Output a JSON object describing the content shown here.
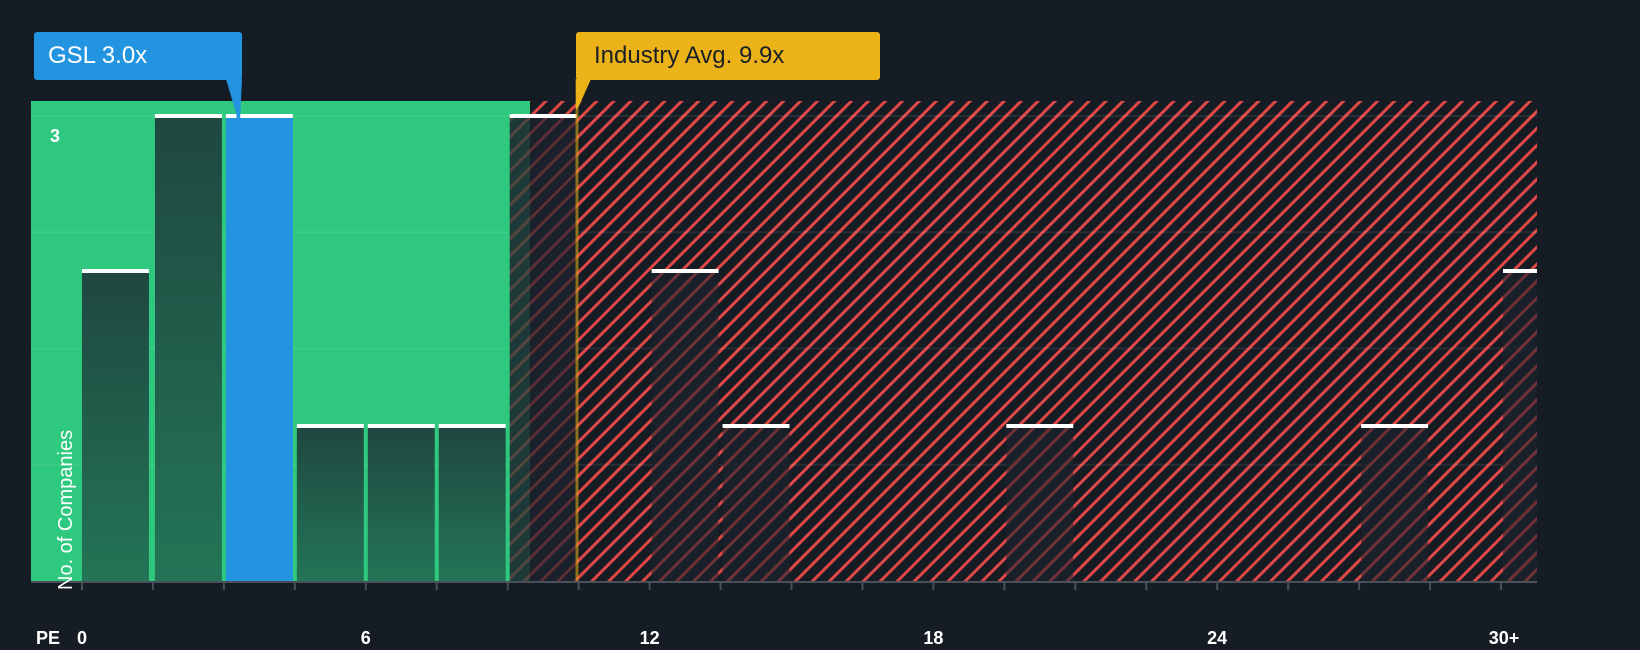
{
  "callouts": {
    "company": {
      "label": "GSL 3.0x",
      "color": "#2394df"
    },
    "industry": {
      "label": "Industry Avg. 9.9x",
      "color": "#ecb319"
    }
  },
  "axis": {
    "y_label": "No. of Companies",
    "y_tick_top": "3",
    "x_label": "PE",
    "x_ticks": [
      "0",
      "6",
      "12",
      "18",
      "24",
      "30+"
    ]
  },
  "colors": {
    "background": "#161c24",
    "undervalued_zone": "#2ec97f",
    "overvalued_hatch": "#e04848",
    "bar_dark": "#1f4a3e",
    "company_bar": "#2394df",
    "bar_cap": "#ffffff",
    "industry_line": "#ecb319"
  },
  "chart_data": {
    "type": "bar",
    "title": "",
    "xlabel": "PE",
    "ylabel": "No. of Companies",
    "ylim": [
      0,
      3
    ],
    "xlim": [
      0,
      31
    ],
    "bin_width": 1.5,
    "categories": [
      "0-1.5",
      "1.5-3",
      "3-4.5",
      "4.5-6",
      "6-7.5",
      "7.5-9",
      "9-10.5",
      "10.5-12",
      "12-13.5",
      "13.5-15",
      "15-16.5",
      "16.5-18",
      "18-19.5",
      "19.5-21",
      "21-22.5",
      "22.5-24",
      "24-25.5",
      "25.5-27",
      "27-28.5",
      "28.5-30",
      "30+"
    ],
    "values": [
      2,
      3,
      3,
      1,
      1,
      1,
      3,
      0,
      2,
      1,
      0,
      0,
      0,
      1,
      0,
      0,
      0,
      0,
      1,
      0,
      2
    ],
    "highlight": {
      "company": "GSL",
      "pe": 3.0,
      "bin_index": 2
    },
    "industry_average": 9.9,
    "annotations": [
      "GSL 3.0x",
      "Industry Avg. 9.9x"
    ],
    "grid": true,
    "legend": null
  }
}
